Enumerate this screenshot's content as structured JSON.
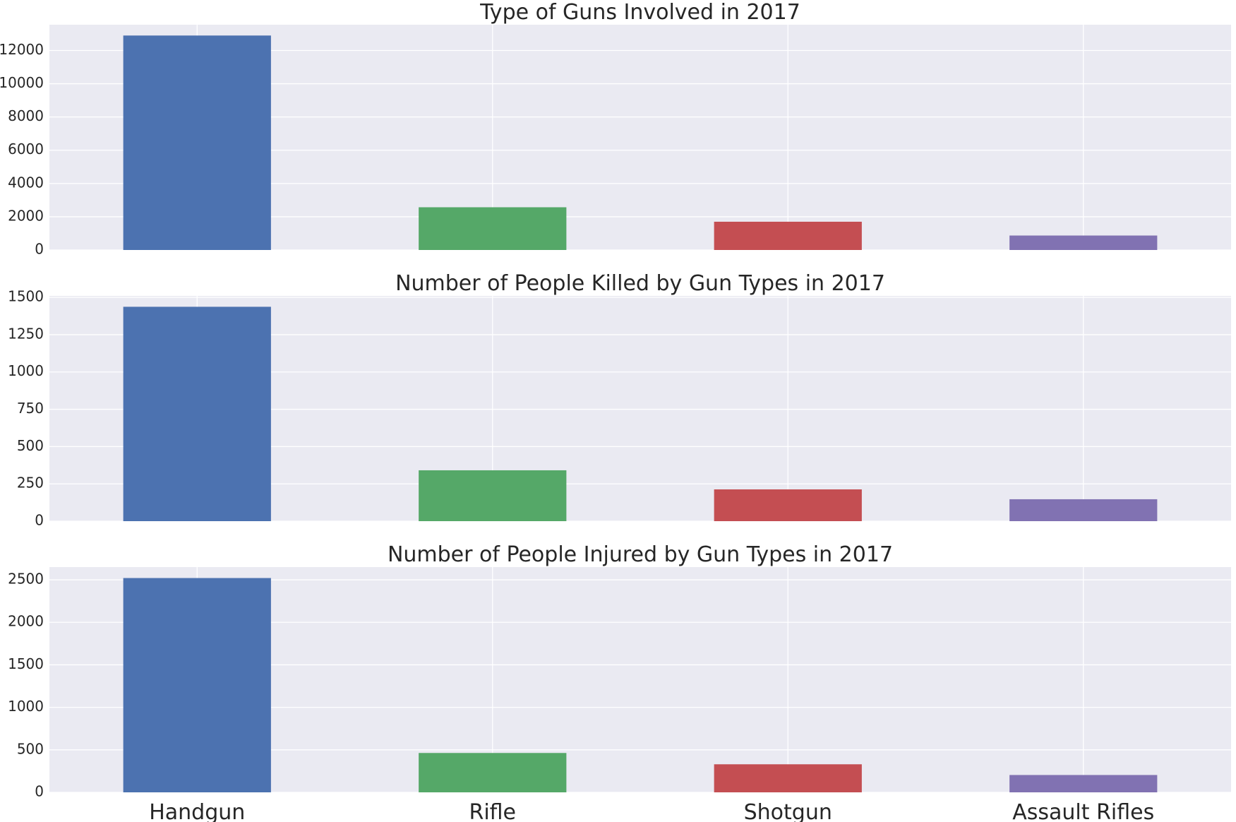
{
  "colors": [
    "#4C72B0",
    "#55A868",
    "#C44E52",
    "#8172B2"
  ],
  "chart_data": [
    {
      "type": "bar",
      "title": "Type of Guns Involved in 2017",
      "categories": [
        "Handgun",
        "Rifle",
        "Shotgun",
        "Assault Rifles"
      ],
      "values": [
        12900,
        2570,
        1700,
        870
      ],
      "ylim": [
        0,
        13550
      ],
      "yticks": [
        0,
        2000,
        4000,
        6000,
        8000,
        10000,
        12000
      ],
      "ytick_labels": [
        "0",
        "2000",
        "4000",
        "6000",
        "8000",
        "10000",
        "12000"
      ],
      "show_xticklabels": false,
      "grid": true
    },
    {
      "type": "bar",
      "title": "Number of People Killed by Gun Types in 2017",
      "categories": [
        "Handgun",
        "Rifle",
        "Shotgun",
        "Assault Rifles"
      ],
      "values": [
        1437,
        341,
        213,
        147
      ],
      "ylim": [
        0,
        1510
      ],
      "yticks": [
        0,
        250,
        500,
        750,
        1000,
        1250,
        1500
      ],
      "ytick_labels": [
        "0",
        "250",
        "500",
        "750",
        "1000",
        "1250",
        "1500"
      ],
      "show_xticklabels": false,
      "grid": true
    },
    {
      "type": "bar",
      "title": "Number of People Injured by Gun Types in 2017",
      "categories": [
        "Handgun",
        "Rifle",
        "Shotgun",
        "Assault Rifles"
      ],
      "values": [
        2521,
        463,
        330,
        204
      ],
      "ylim": [
        0,
        2650
      ],
      "yticks": [
        0,
        500,
        1000,
        1500,
        2000,
        2500
      ],
      "ytick_labels": [
        "0",
        "500",
        "1000",
        "1500",
        "2000",
        "2500"
      ],
      "xtick_labels": [
        "Handgun",
        "Rifle",
        "Shotgun",
        "Assault Rifles"
      ],
      "show_xticklabels": true,
      "grid": true
    }
  ]
}
